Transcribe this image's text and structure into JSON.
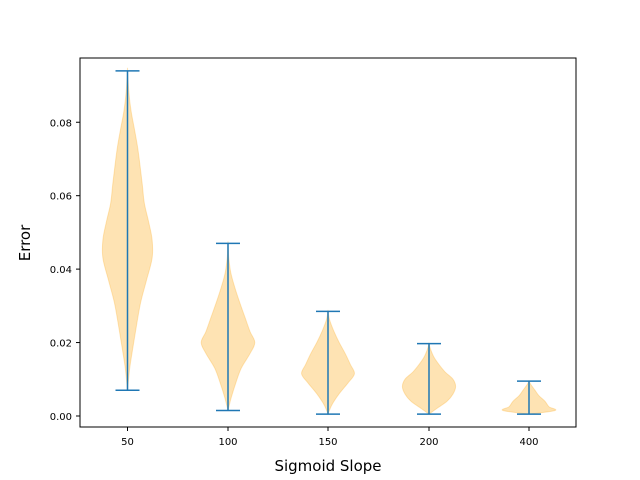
{
  "chart_data": {
    "type": "violin",
    "title": "",
    "xlabel": "Sigmoid Slope",
    "ylabel": "Error",
    "ylim": [
      -0.003,
      0.0975
    ],
    "grid": false,
    "y_ticks": [
      0.0,
      0.02,
      0.04,
      0.06,
      0.08
    ],
    "y_tick_labels": [
      "0.00",
      "0.02",
      "0.04",
      "0.06",
      "0.08"
    ],
    "categories": [
      "50",
      "100",
      "150",
      "200",
      "400"
    ],
    "colors": {
      "body": "#fdb841",
      "whisker": "#1f77b4"
    },
    "violins": [
      {
        "category": "50",
        "min": 0.007,
        "max": 0.094,
        "profile": [
          [
            0.007,
            0.0
          ],
          [
            0.013,
            1.1
          ],
          [
            0.019,
            2.8
          ],
          [
            0.025,
            4.6
          ],
          [
            0.031,
            6.6
          ],
          [
            0.037,
            9.5
          ],
          [
            0.043,
            12.3
          ],
          [
            0.048,
            12.3
          ],
          [
            0.053,
            10.5
          ],
          [
            0.058,
            8.4
          ],
          [
            0.063,
            7.4
          ],
          [
            0.068,
            6.3
          ],
          [
            0.073,
            5.1
          ],
          [
            0.078,
            3.5
          ],
          [
            0.083,
            1.8
          ],
          [
            0.088,
            0.7
          ],
          [
            0.094,
            0.0
          ]
        ]
      },
      {
        "category": "100",
        "min": 0.0015,
        "max": 0.047,
        "profile": [
          [
            0.0015,
            0.0
          ],
          [
            0.005,
            1.6
          ],
          [
            0.009,
            3.9
          ],
          [
            0.013,
            6.6
          ],
          [
            0.017,
            11.0
          ],
          [
            0.02,
            13.4
          ],
          [
            0.023,
            11.0
          ],
          [
            0.027,
            8.4
          ],
          [
            0.031,
            5.8
          ],
          [
            0.035,
            3.4
          ],
          [
            0.039,
            1.4
          ],
          [
            0.043,
            0.4
          ],
          [
            0.047,
            0.0
          ]
        ]
      },
      {
        "category": "150",
        "min": 0.0005,
        "max": 0.0285,
        "profile": [
          [
            0.0005,
            0.0
          ],
          [
            0.003,
            1.9
          ],
          [
            0.006,
            5.5
          ],
          [
            0.009,
            10.0
          ],
          [
            0.0115,
            13.2
          ],
          [
            0.014,
            11.2
          ],
          [
            0.017,
            8.6
          ],
          [
            0.02,
            5.6
          ],
          [
            0.023,
            3.0
          ],
          [
            0.026,
            0.9
          ],
          [
            0.0285,
            0.0
          ]
        ]
      },
      {
        "category": "200",
        "min": 0.0005,
        "max": 0.0197,
        "profile": [
          [
            0.0005,
            0.0
          ],
          [
            0.002,
            3.8
          ],
          [
            0.004,
            9.0
          ],
          [
            0.006,
            12.0
          ],
          [
            0.008,
            13.3
          ],
          [
            0.01,
            12.0
          ],
          [
            0.012,
            8.0
          ],
          [
            0.014,
            5.0
          ],
          [
            0.016,
            2.5
          ],
          [
            0.018,
            0.9
          ],
          [
            0.0197,
            0.0
          ]
        ]
      },
      {
        "category": "400",
        "min": 0.0005,
        "max": 0.0095,
        "profile": [
          [
            0.0005,
            0.0
          ],
          [
            0.0015,
            13.0
          ],
          [
            0.0025,
            10.0
          ],
          [
            0.004,
            8.0
          ],
          [
            0.0055,
            5.0
          ],
          [
            0.007,
            3.0
          ],
          [
            0.0085,
            1.0
          ],
          [
            0.0095,
            0.0
          ]
        ]
      }
    ]
  }
}
